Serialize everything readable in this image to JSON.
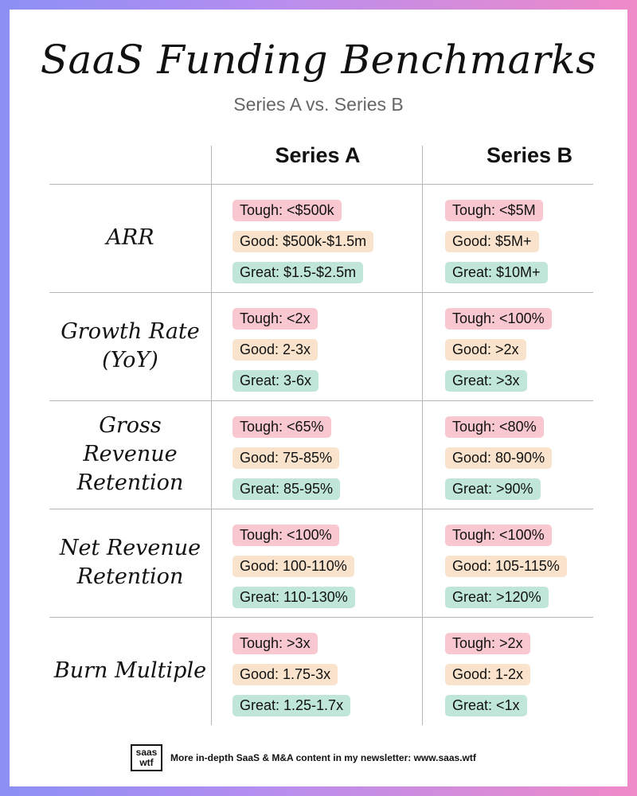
{
  "title": "SaaS Funding Benchmarks",
  "subtitle": "Series A vs. Series B",
  "columns": [
    "Series A",
    "Series B"
  ],
  "rows": [
    {
      "label": "ARR",
      "series_a": {
        "tough": "Tough: <$500k",
        "good": "Good: $500k-$1.5m",
        "great": "Great: $1.5-$2.5m"
      },
      "series_b": {
        "tough": "Tough: <$5M",
        "good": "Good: $5M+",
        "great": "Great: $10M+"
      }
    },
    {
      "label": "Growth Rate\n(YoY)",
      "series_a": {
        "tough": "Tough: <2x",
        "good": "Good: 2-3x",
        "great": "Great: 3-6x"
      },
      "series_b": {
        "tough": "Tough: <100%",
        "good": "Good: >2x",
        "great": "Great: >3x"
      }
    },
    {
      "label": "Gross Revenue\nRetention",
      "series_a": {
        "tough": "Tough: <65%",
        "good": "Good: 75-85%",
        "great": "Great: 85-95%"
      },
      "series_b": {
        "tough": "Tough: <80%",
        "good": "Good: 80-90%",
        "great": "Great: >90%"
      }
    },
    {
      "label": "Net Revenue\nRetention",
      "series_a": {
        "tough": "Tough: <100%",
        "good": "Good: 100-110%",
        "great": "Great: 110-130%"
      },
      "series_b": {
        "tough": "Tough: <100%",
        "good": "Good: 105-115%",
        "great": "Great: >120%"
      }
    },
    {
      "label": "Burn Multiple",
      "series_a": {
        "tough": "Tough: >3x",
        "good": "Good: 1.75-3x",
        "great": "Great: 1.25-1.7x"
      },
      "series_b": {
        "tough": "Tough: >2x",
        "good": "Good: 1-2x",
        "great": "Great: <1x"
      }
    }
  ],
  "footer": {
    "logo_top": "saas",
    "logo_bottom": "wtf",
    "text": "More in-depth SaaS & M&A content in my newsletter: www.saas.wtf"
  },
  "colors": {
    "tough": "#f8c7cf",
    "good": "#f9e3cc",
    "great": "#bfe6d9"
  }
}
